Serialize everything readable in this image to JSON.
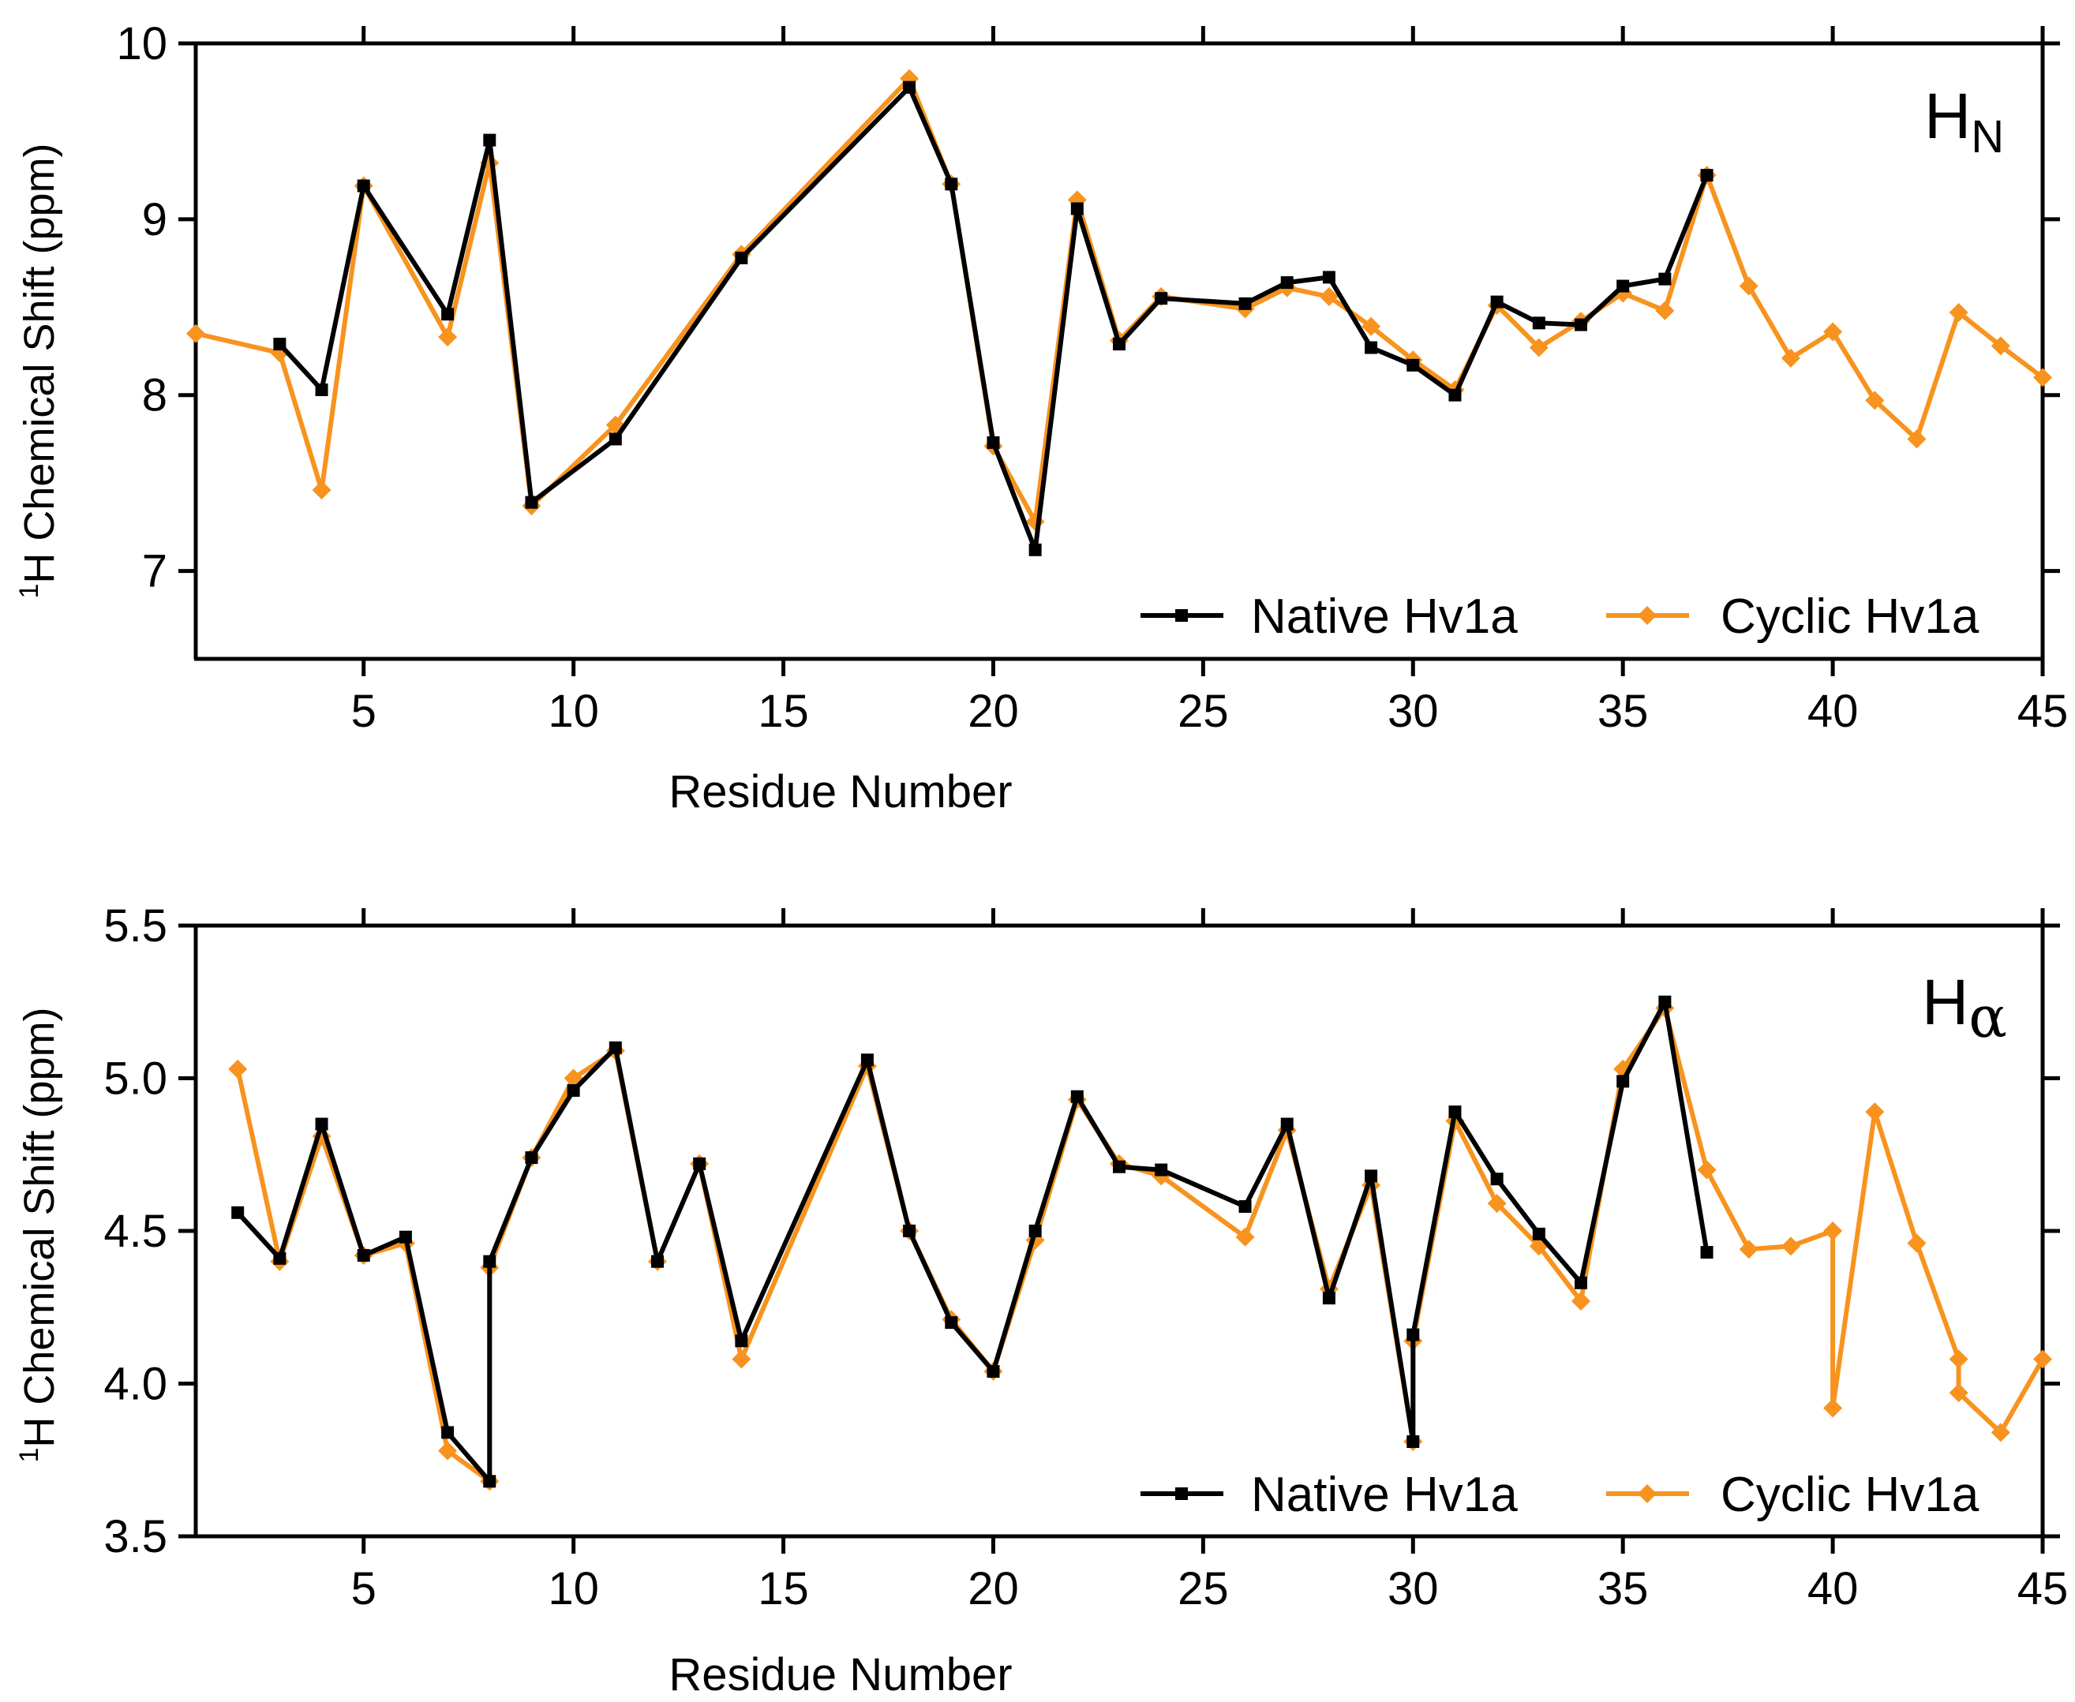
{
  "chart_data": [
    {
      "type": "line",
      "panel_label": "H",
      "panel_label_sub": "N",
      "xlabel": "Residue Number",
      "ylabel_sup": "1",
      "ylabel": "H Chemical Shift (ppm)",
      "xlim": [
        1,
        45
      ],
      "ylim": [
        6.5,
        10
      ],
      "xticks": [
        "5",
        "10",
        "15",
        "20",
        "25",
        "30",
        "35",
        "40",
        "45"
      ],
      "yticks": [
        "7",
        "8",
        "9",
        "10"
      ],
      "legend_position": "bottom-right",
      "series": [
        {
          "name": "Native Hv1a",
          "color": "#000000",
          "marker": "square",
          "x": [
            3,
            4,
            5,
            7,
            8,
            9,
            11,
            14,
            18,
            19,
            20,
            21,
            22,
            23,
            24,
            26,
            27,
            28,
            29,
            30,
            31,
            32,
            33,
            34,
            35,
            36,
            37
          ],
          "y": [
            8.29,
            8.03,
            9.19,
            8.46,
            9.45,
            7.39,
            7.75,
            8.78,
            9.75,
            9.2,
            7.73,
            7.12,
            9.06,
            8.29,
            8.55,
            8.52,
            8.64,
            8.67,
            8.27,
            8.17,
            8.0,
            8.53,
            8.41,
            8.4,
            8.62,
            8.66,
            9.25
          ]
        },
        {
          "name": "Cyclic Hv1a",
          "color": "#f7931e",
          "marker": "diamond",
          "x": [
            1,
            3,
            4,
            5,
            7,
            8,
            9,
            11,
            14,
            18,
            19,
            20,
            21,
            22,
            23,
            24,
            26,
            27,
            28,
            29,
            30,
            31,
            32,
            33,
            34,
            35,
            36,
            37,
            38,
            39,
            40,
            41,
            42,
            43,
            44,
            45
          ],
          "y": [
            8.35,
            8.24,
            7.46,
            9.19,
            8.33,
            9.32,
            7.37,
            7.83,
            8.8,
            9.8,
            9.2,
            7.71,
            7.28,
            9.11,
            8.31,
            8.56,
            8.49,
            8.61,
            8.56,
            8.39,
            8.2,
            8.03,
            8.51,
            8.27,
            8.42,
            8.58,
            8.48,
            9.25,
            8.62,
            8.21,
            8.36,
            7.97,
            7.75,
            8.47,
            8.28,
            8.1
          ]
        }
      ]
    },
    {
      "type": "line",
      "panel_label": "H",
      "panel_label_sub": "α",
      "xlabel": "Residue Number",
      "ylabel_sup": "1",
      "ylabel": "H Chemical Shift (ppm)",
      "xlim": [
        1,
        45
      ],
      "ylim": [
        3.5,
        5.5
      ],
      "xticks": [
        "5",
        "10",
        "15",
        "20",
        "25",
        "30",
        "35",
        "40",
        "45"
      ],
      "yticks": [
        "3.5",
        "4.0",
        "4.5",
        "5.0",
        "5.5"
      ],
      "legend_position": "bottom-right",
      "series": [
        {
          "name": "Native Hv1a",
          "color": "#000000",
          "marker": "square",
          "x": [
            2,
            3,
            4,
            5,
            6,
            7,
            8,
            8,
            9,
            10,
            11,
            12,
            13,
            14,
            17,
            18,
            19,
            20,
            21,
            22,
            23,
            24,
            26,
            27,
            28,
            29,
            30,
            30,
            31,
            32,
            33,
            34,
            35,
            36,
            37
          ],
          "y": [
            4.56,
            4.41,
            4.85,
            4.42,
            4.48,
            3.84,
            3.68,
            4.4,
            4.74,
            4.96,
            5.1,
            4.4,
            4.72,
            4.14,
            5.06,
            4.5,
            4.2,
            4.04,
            4.5,
            4.94,
            4.71,
            4.7,
            4.58,
            4.85,
            4.28,
            4.68,
            3.81,
            4.16,
            4.89,
            4.67,
            4.49,
            4.33,
            4.99,
            5.25,
            4.43
          ]
        },
        {
          "name": "Cyclic Hv1a",
          "color": "#f7931e",
          "marker": "diamond",
          "x": [
            2,
            3,
            4,
            5,
            6,
            7,
            8,
            8,
            9,
            10,
            11,
            12,
            13,
            14,
            17,
            18,
            19,
            20,
            21,
            22,
            23,
            24,
            26,
            27,
            28,
            29,
            30,
            30,
            31,
            32,
            33,
            34,
            35,
            36,
            37,
            38,
            39,
            40,
            40,
            41,
            42,
            43,
            43,
            44,
            45
          ],
          "y": [
            5.03,
            4.4,
            4.81,
            4.42,
            4.46,
            3.78,
            3.68,
            4.38,
            4.74,
            5.0,
            5.09,
            4.4,
            4.72,
            4.08,
            5.04,
            4.5,
            4.21,
            4.04,
            4.47,
            4.93,
            4.72,
            4.68,
            4.48,
            4.83,
            4.31,
            4.65,
            3.81,
            4.14,
            4.86,
            4.59,
            4.45,
            4.27,
            5.03,
            5.23,
            4.7,
            4.44,
            4.45,
            4.5,
            3.92,
            4.89,
            4.46,
            4.08,
            3.97,
            3.84,
            4.08
          ]
        }
      ]
    }
  ]
}
